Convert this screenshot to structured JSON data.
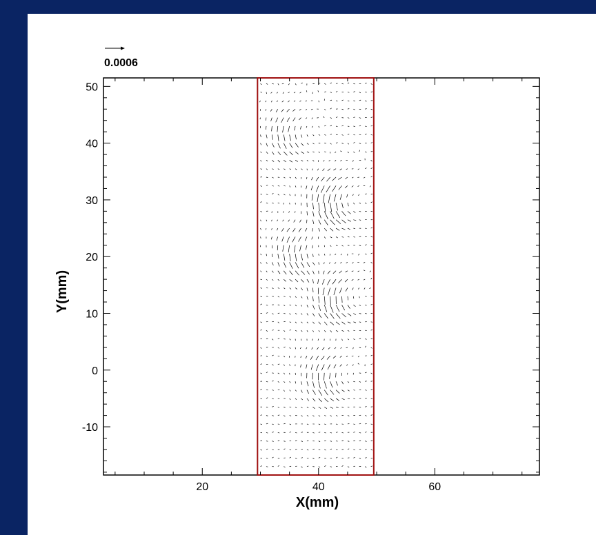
{
  "chart_data": {
    "type": "vector-field",
    "xlabel": "X(mm)",
    "ylabel": "Y(mm)",
    "xlim": [
      3,
      78
    ],
    "ylim": [
      -18.5,
      51.5
    ],
    "xticks": [
      20,
      40,
      60
    ],
    "yticks": [
      -10,
      0,
      10,
      20,
      30,
      40,
      50
    ],
    "x_minor_step": 5,
    "y_minor_step": 2,
    "reference_vector": {
      "magnitude": "0.0006"
    },
    "roi_box": {
      "x": [
        29.5,
        49.5
      ],
      "y": [
        -18.5,
        51.5
      ],
      "color": "#a01010"
    },
    "grid": false,
    "field": {
      "x_range": [
        30,
        49
      ],
      "y_range": [
        -17,
        51
      ],
      "dx": 1.0,
      "dy": 1.5,
      "vortex_centers": [
        {
          "x": 35,
          "y": 42,
          "strength": 0.7
        },
        {
          "x": 42.5,
          "y": 30,
          "strength": 1.0
        },
        {
          "x": 36.5,
          "y": 21,
          "strength": 0.8
        },
        {
          "x": 43,
          "y": 13,
          "strength": 0.9
        },
        {
          "x": 41.5,
          "y": -1,
          "strength": 0.8
        }
      ]
    }
  }
}
